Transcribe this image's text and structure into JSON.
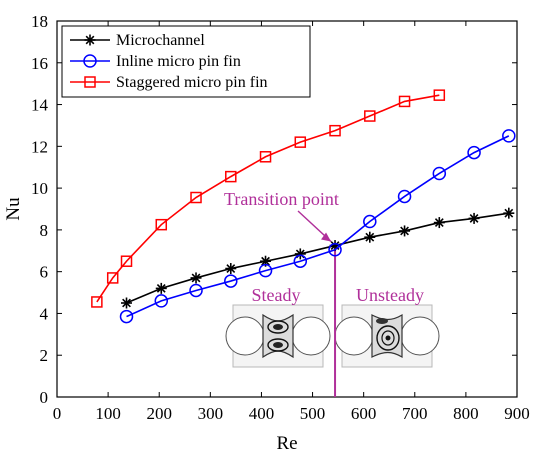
{
  "chart_data": {
    "type": "line",
    "xlabel": "Re",
    "ylabel": "Nu",
    "xlim": [
      0,
      900
    ],
    "ylim": [
      0,
      18
    ],
    "xticks": [
      0,
      100,
      200,
      300,
      400,
      500,
      600,
      700,
      800,
      900
    ],
    "yticks": [
      0,
      2,
      4,
      6,
      8,
      10,
      12,
      14,
      16,
      18
    ],
    "grid": false,
    "legend_position": "top-left",
    "series": [
      {
        "name": "Microchannel",
        "color": "#000000",
        "marker": "asterisk",
        "x": [
          136,
          204,
          272,
          340,
          408,
          476,
          544,
          612,
          680,
          748,
          816,
          884
        ],
        "y": [
          4.5,
          5.2,
          5.7,
          6.15,
          6.5,
          6.85,
          7.25,
          7.65,
          7.95,
          8.35,
          8.55,
          8.8
        ]
      },
      {
        "name": "Inline micro pin fin",
        "color": "#0000ff",
        "marker": "circle",
        "x": [
          136,
          204,
          272,
          340,
          408,
          476,
          544,
          612,
          680,
          748,
          816,
          884
        ],
        "y": [
          3.85,
          4.6,
          5.1,
          5.55,
          6.05,
          6.5,
          7.05,
          8.4,
          9.6,
          10.7,
          11.7,
          12.5
        ]
      },
      {
        "name": "Staggered micro pin fin",
        "color": "#ff0000",
        "marker": "square",
        "x": [
          78,
          109,
          136,
          204,
          272,
          340,
          408,
          476,
          544,
          612,
          680,
          748
        ],
        "y": [
          4.55,
          5.7,
          6.5,
          8.25,
          9.55,
          10.55,
          11.5,
          12.2,
          12.75,
          13.45,
          14.15,
          14.45
        ]
      }
    ],
    "annotations": {
      "transition_label": "Transition point",
      "transition_x": 544,
      "transition_point_y": 7.25,
      "steady_label": "Steady",
      "unsteady_label": "Unsteady",
      "color": "#b0309a"
    }
  }
}
